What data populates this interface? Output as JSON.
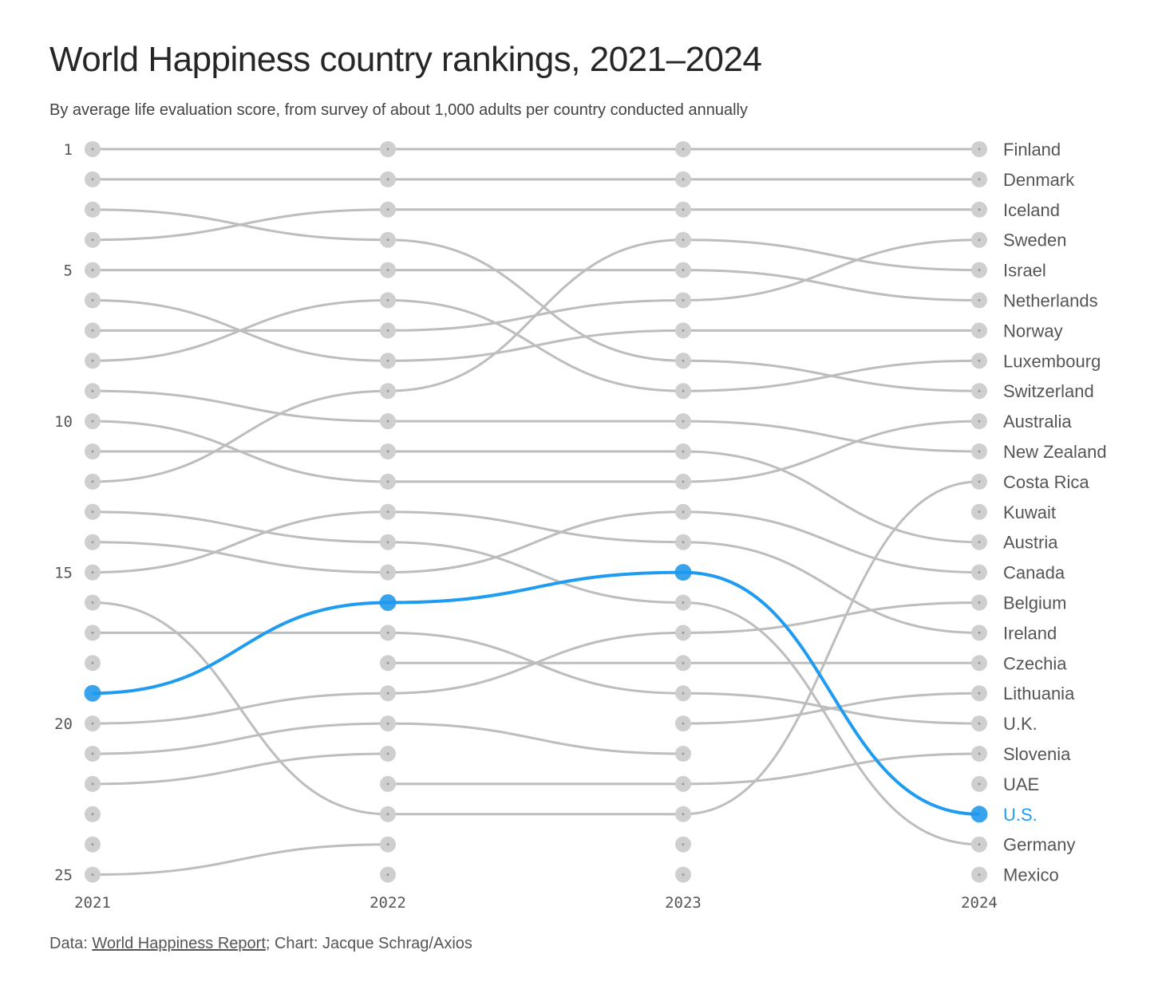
{
  "header": {
    "title": "World Happiness country rankings, 2021–2024",
    "subtitle": "By average life evaluation score, from survey of about 1,000 adults per country conducted annually"
  },
  "footer": {
    "data_prefix": "Data: ",
    "data_source": "World Happiness Report",
    "chart_credit": "; Chart: Jacque Schrag/Axios"
  },
  "colors": {
    "line": "#bdbdbd",
    "dot": "#cfcfcf",
    "highlight": "#1f9bf0"
  },
  "chart_data": {
    "type": "line",
    "subtype": "bump",
    "title": "World Happiness country rankings, 2021–2024",
    "subtitle": "By average life evaluation score, from survey of about 1,000 adults per country conducted annually",
    "x": [
      "2021",
      "2022",
      "2023",
      "2024"
    ],
    "y_reversed": true,
    "ylim": [
      1,
      25
    ],
    "y_ticks": [
      "1",
      "5",
      "10",
      "15",
      "20",
      "25"
    ],
    "highlight": "U.S.",
    "series": [
      {
        "name": "Finland",
        "values": [
          1,
          1,
          1,
          1
        ]
      },
      {
        "name": "Denmark",
        "values": [
          2,
          2,
          2,
          2
        ]
      },
      {
        "name": "Iceland",
        "values": [
          4,
          3,
          3,
          3
        ]
      },
      {
        "name": "Sweden",
        "values": [
          7,
          7,
          6,
          4
        ]
      },
      {
        "name": "Israel",
        "values": [
          12,
          9,
          4,
          5
        ]
      },
      {
        "name": "Netherlands",
        "values": [
          5,
          5,
          5,
          6
        ]
      },
      {
        "name": "Norway",
        "values": [
          6,
          8,
          7,
          7
        ]
      },
      {
        "name": "Luxembourg",
        "values": [
          8,
          6,
          9,
          8
        ]
      },
      {
        "name": "Switzerland",
        "values": [
          3,
          4,
          8,
          9
        ]
      },
      {
        "name": "Australia",
        "values": [
          10,
          12,
          12,
          10
        ]
      },
      {
        "name": "New Zealand",
        "values": [
          9,
          10,
          10,
          11
        ]
      },
      {
        "name": "Costa Rica",
        "values": [
          16,
          23,
          23,
          12
        ]
      },
      {
        "name": "Kuwait",
        "values": [
          null,
          null,
          null,
          13
        ]
      },
      {
        "name": "Austria",
        "values": [
          11,
          11,
          11,
          14
        ]
      },
      {
        "name": "Canada",
        "values": [
          14,
          15,
          13,
          15
        ]
      },
      {
        "name": "Belgium",
        "values": [
          20,
          19,
          17,
          16
        ]
      },
      {
        "name": "Ireland",
        "values": [
          15,
          13,
          14,
          17
        ]
      },
      {
        "name": "Czechia",
        "values": [
          null,
          18,
          18,
          18
        ]
      },
      {
        "name": "Lithuania",
        "values": [
          null,
          null,
          20,
          19
        ]
      },
      {
        "name": "U.K.",
        "values": [
          17,
          17,
          19,
          20
        ]
      },
      {
        "name": "Slovenia",
        "values": [
          null,
          22,
          22,
          21
        ]
      },
      {
        "name": "UAE",
        "values": [
          null,
          null,
          null,
          22
        ]
      },
      {
        "name": "U.S.",
        "values": [
          19,
          16,
          15,
          23
        ]
      },
      {
        "name": "Germany",
        "values": [
          13,
          14,
          16,
          24
        ]
      },
      {
        "name": "Mexico",
        "values": [
          null,
          null,
          null,
          25
        ]
      }
    ],
    "partial_series": [
      {
        "values": [
          21,
          20,
          21,
          null
        ]
      },
      {
        "values": [
          22,
          21,
          null,
          null
        ]
      },
      {
        "values": [
          25,
          24,
          null,
          null
        ]
      }
    ]
  }
}
